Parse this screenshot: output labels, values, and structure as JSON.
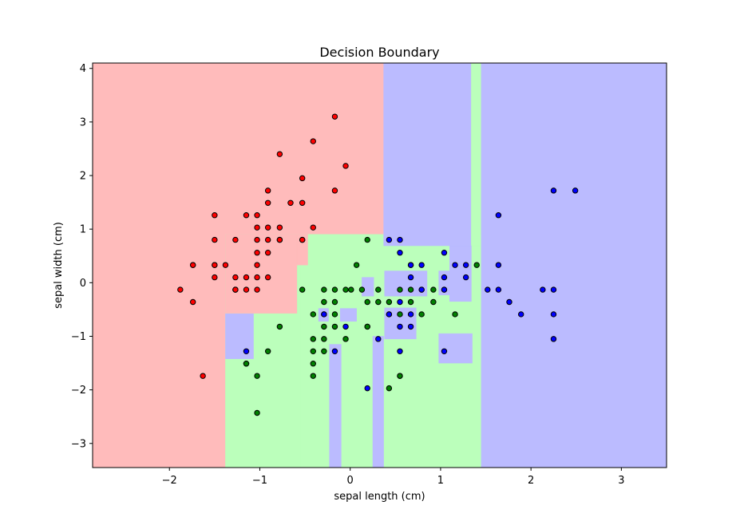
{
  "chart_data": {
    "type": "scatter",
    "title": "Decision Boundary",
    "xlabel": "sepal length (cm)",
    "ylabel": "sepal width (cm)",
    "xlim": [
      -2.85,
      3.5
    ],
    "ylim": [
      -3.45,
      4.1
    ],
    "xticks": [
      -2,
      -1,
      0,
      1,
      2,
      3
    ],
    "yticks": [
      -3,
      -2,
      -1,
      0,
      1,
      2,
      3,
      4
    ],
    "xtick_labels": [
      "−2",
      "−1",
      "0",
      "1",
      "2",
      "3"
    ],
    "ytick_labels": [
      "−3",
      "−2",
      "−1",
      "0",
      "1",
      "2",
      "3",
      "4"
    ],
    "grid": false,
    "classes": [
      {
        "id": 0,
        "point_color": "#ff0000",
        "region_color": "#ffbbbb"
      },
      {
        "id": 1,
        "point_color": "#008000",
        "region_color": "#bbffbb"
      },
      {
        "id": 2,
        "point_color": "#0000ff",
        "region_color": "#bbbbff"
      }
    ],
    "regions": [
      {
        "class": 0,
        "x": [
          -2.85,
          3.5
        ],
        "y": [
          -3.45,
          4.1
        ]
      },
      {
        "class": 1,
        "x": [
          -1.38,
          1.45
        ],
        "y": [
          -3.45,
          0.9
        ]
      },
      {
        "class": 1,
        "x": [
          -0.55,
          1.45
        ],
        "y": [
          -3.45,
          0.9
        ]
      },
      {
        "class": 0,
        "x": [
          -1.38,
          -0.59
        ],
        "y": [
          -0.57,
          0.9
        ]
      },
      {
        "class": 0,
        "x": [
          -0.59,
          -0.47
        ],
        "y": [
          0.33,
          0.9
        ]
      },
      {
        "class": 2,
        "x": [
          0.37,
          1.34
        ],
        "y": [
          0.69,
          4.1
        ]
      },
      {
        "class": 1,
        "x": [
          1.34,
          1.45
        ],
        "y": [
          0.69,
          4.1
        ]
      },
      {
        "class": 2,
        "x": [
          1.45,
          3.5
        ],
        "y": [
          -3.45,
          4.1
        ]
      },
      {
        "class": 2,
        "x": [
          -1.38,
          -1.07
        ],
        "y": [
          -1.42,
          -0.58
        ]
      },
      {
        "class": 2,
        "x": [
          -0.23,
          -0.1
        ],
        "y": [
          -3.45,
          -1.15
        ]
      },
      {
        "class": 2,
        "x": [
          0.25,
          0.37
        ],
        "y": [
          -3.45,
          -1.0
        ]
      },
      {
        "class": 2,
        "x": [
          -0.35,
          -0.24
        ],
        "y": [
          -0.72,
          -0.48
        ]
      },
      {
        "class": 2,
        "x": [
          -0.11,
          0.07
        ],
        "y": [
          -0.72,
          -0.48
        ]
      },
      {
        "class": 2,
        "x": [
          0.13,
          0.26
        ],
        "y": [
          -0.25,
          0.1
        ]
      },
      {
        "class": 2,
        "x": [
          0.38,
          0.85
        ],
        "y": [
          -0.25,
          0.22
        ]
      },
      {
        "class": 2,
        "x": [
          0.38,
          0.73
        ],
        "y": [
          -1.05,
          -0.47
        ]
      },
      {
        "class": 2,
        "x": [
          0.98,
          1.1
        ],
        "y": [
          -0.23,
          0.22
        ]
      },
      {
        "class": 2,
        "x": [
          1.1,
          1.34
        ],
        "y": [
          -0.35,
          0.69
        ]
      },
      {
        "class": 2,
        "x": [
          0.98,
          1.35
        ],
        "y": [
          -1.5,
          -0.95
        ]
      }
    ],
    "series": [
      {
        "class": 0,
        "x": [
          -0.17,
          -0.41,
          -0.78,
          -0.05,
          -0.17,
          -0.53,
          -0.53,
          -0.66,
          -0.91,
          -0.91,
          -1.5,
          -1.15,
          -1.03,
          -0.41,
          -0.53,
          -1.5,
          -1.27,
          -1.03,
          -0.91,
          -0.78,
          -0.78,
          -0.91,
          -1.03,
          -1.03,
          -0.91,
          -0.78,
          -0.53,
          -1.74,
          -1.5,
          -1.38,
          -1.27,
          -1.03,
          -1.03,
          -0.91,
          -1.5,
          -1.5,
          -1.27,
          -1.15,
          -1.27,
          -1.88,
          -1.15,
          -1.27,
          -1.03,
          -1.74,
          -1.74,
          -1.63
        ],
        "y": [
          3.1,
          2.64,
          2.4,
          2.18,
          1.72,
          1.95,
          1.49,
          1.49,
          1.72,
          1.49,
          1.26,
          1.26,
          1.26,
          1.03,
          0.8,
          0.8,
          0.8,
          1.03,
          1.03,
          1.03,
          0.8,
          0.8,
          0.8,
          0.56,
          0.56,
          0.8,
          0.8,
          0.33,
          0.33,
          0.33,
          0.1,
          0.33,
          0.1,
          0.1,
          0.1,
          0.33,
          -0.13,
          -0.13,
          -0.13,
          -0.13,
          0.1,
          -0.13,
          -0.13,
          -0.36,
          0.33,
          -1.74
        ]
      },
      {
        "class": 1,
        "x": [
          0.19,
          0.07,
          -0.05,
          -0.53,
          -0.29,
          -0.17,
          0.01,
          0.13,
          0.31,
          0.55,
          0.67,
          0.79,
          0.92,
          1.04,
          1.4,
          -0.29,
          -0.17,
          0.19,
          0.31,
          0.43,
          0.92,
          1.16,
          -0.78,
          -0.29,
          -0.17,
          0.19,
          0.43,
          0.55,
          0.67,
          0.79,
          -0.05,
          -0.29,
          -0.41,
          -0.29,
          -1.15,
          -0.41,
          -0.41,
          -0.41,
          -0.91,
          -0.29,
          0.55,
          0.19,
          -0.41,
          -1.03,
          -1.15,
          -1.03,
          0.43,
          0.55,
          -0.17
        ],
        "y": [
          0.8,
          0.33,
          -0.13,
          -0.13,
          -0.13,
          -0.13,
          -0.13,
          -0.13,
          -0.13,
          -0.13,
          -0.13,
          -0.13,
          -0.13,
          -0.13,
          0.33,
          -0.36,
          -0.36,
          -0.36,
          -0.36,
          -0.36,
          -0.36,
          -0.59,
          -0.82,
          -0.82,
          -0.59,
          -0.82,
          -0.59,
          -0.59,
          -0.36,
          -0.59,
          -1.05,
          -1.05,
          -1.05,
          -1.28,
          -1.51,
          -1.28,
          -1.51,
          -1.74,
          -1.28,
          -0.59,
          -1.74,
          -0.82,
          -0.59,
          -1.74,
          -1.51,
          -2.43,
          -1.97,
          -1.74,
          -0.82
        ]
      },
      {
        "class": 2,
        "x": [
          2.25,
          2.49,
          1.64,
          0.43,
          0.55,
          1.04,
          0.55,
          0.67,
          0.79,
          0.67,
          1.04,
          1.16,
          1.28,
          0.67,
          1.04,
          1.28,
          1.64,
          1.52,
          1.64,
          2.13,
          2.25,
          0.79,
          1.76,
          1.89,
          2.25,
          0.43,
          0.55,
          0.67,
          0.67,
          0.55,
          -0.05,
          -0.29,
          2.25,
          0.31,
          -0.17,
          1.04,
          0.55,
          0.19,
          -1.15
        ],
        "y": [
          1.72,
          1.72,
          1.26,
          0.8,
          0.8,
          0.56,
          0.56,
          0.33,
          0.33,
          0.1,
          0.1,
          0.33,
          0.33,
          0.33,
          -0.13,
          0.1,
          0.33,
          -0.13,
          -0.13,
          -0.13,
          -0.13,
          -0.13,
          -0.36,
          -0.59,
          -0.59,
          -0.59,
          -0.36,
          -0.59,
          -0.82,
          -0.82,
          -0.82,
          -0.59,
          -1.05,
          -1.05,
          -1.28,
          -1.28,
          -1.28,
          -1.97,
          -1.28
        ]
      }
    ]
  }
}
